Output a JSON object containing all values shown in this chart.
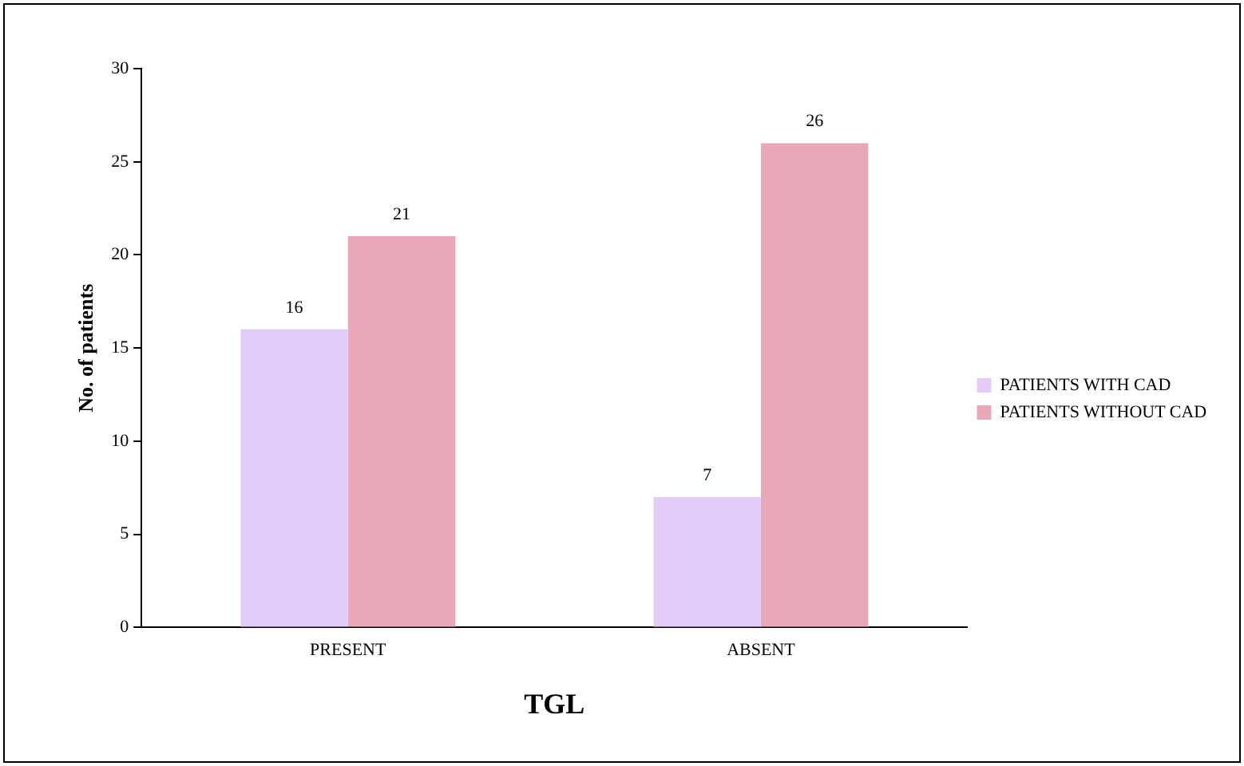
{
  "chart_data": {
    "type": "bar",
    "xlabel": "TGL",
    "ylabel": "No. of patients",
    "categories": [
      "PRESENT",
      "ABSENT"
    ],
    "series": [
      {
        "name": "PATIENTS WITH CAD",
        "color": "#e4ccf8",
        "values": [
          16,
          7
        ]
      },
      {
        "name": "PATIENTS WITHOUT CAD",
        "color": "#e8a8b8",
        "values": [
          21,
          26
        ]
      }
    ],
    "ylim": [
      0,
      30
    ],
    "yticks": [
      0,
      5,
      10,
      15,
      20,
      25,
      30
    ],
    "grid": false,
    "legend": "right",
    "data_labels": true
  }
}
